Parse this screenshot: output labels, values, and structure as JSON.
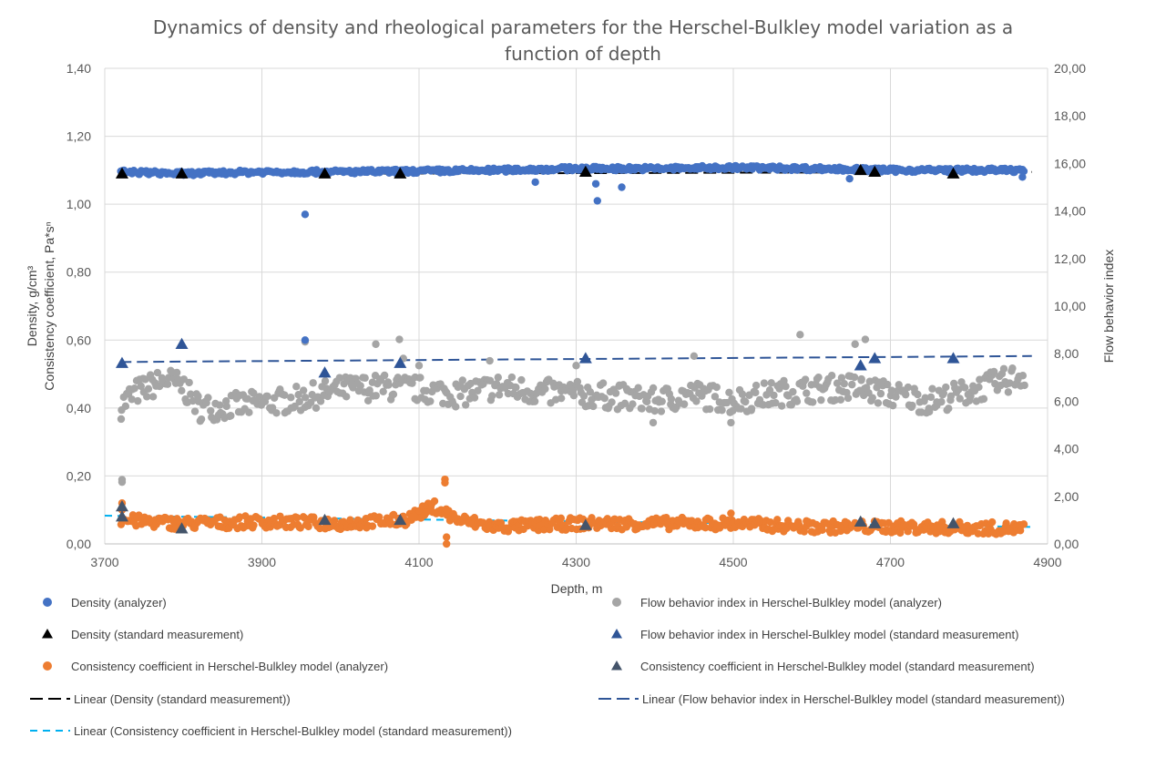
{
  "chart_data": {
    "type": "scatter",
    "title_line1": "Dynamics of density and rheological parameters for the Herschel-Bulkley model variation as a",
    "title_line2": "function of depth",
    "xlabel": "Depth, m",
    "ylabel_left_line1": "Density, g/cm³",
    "ylabel_left_line2": "Consistency coefficient, Pa*sⁿ",
    "ylabel_right": "Flow behavior index",
    "xlim": [
      3700,
      4900
    ],
    "ylim_left": [
      0,
      1.4
    ],
    "ylim_right": [
      0,
      20
    ],
    "x_ticks": [
      "3700",
      "3900",
      "4100",
      "4300",
      "4500",
      "4700",
      "4900"
    ],
    "y_left_ticks": [
      "0,00",
      "0,20",
      "0,40",
      "0,60",
      "0,80",
      "1,00",
      "1,20",
      "1,40"
    ],
    "y_right_ticks": [
      "0,00",
      "2,00",
      "4,00",
      "6,00",
      "8,00",
      "10,00",
      "12,00",
      "14,00",
      "16,00",
      "18,00",
      "20,00"
    ],
    "grid": true,
    "legend_position": "bottom",
    "colors": {
      "density_analyzer": "#4472C4",
      "density_standard": "#000000",
      "consistency_analyzer": "#ED7D31",
      "consistency_standard": "#44546A",
      "flow_analyzer": "#A5A5A5",
      "flow_standard": "#2F5597",
      "trend_density": "#000000",
      "trend_flow": "#2F5597",
      "trend_consistency": "#00B0F0"
    },
    "series": {
      "density_analyzer": {
        "name": "Density (analyzer)",
        "axis": "left",
        "baseline": [
          [
            3720,
            1.095
          ],
          [
            3800,
            1.09
          ],
          [
            3900,
            1.095
          ],
          [
            4000,
            1.095
          ],
          [
            4100,
            1.097
          ],
          [
            4200,
            1.1
          ],
          [
            4300,
            1.105
          ],
          [
            4400,
            1.105
          ],
          [
            4500,
            1.108
          ],
          [
            4600,
            1.105
          ],
          [
            4700,
            1.1
          ],
          [
            4870,
            1.1
          ]
        ],
        "outliers": [
          [
            3955,
            0.97
          ],
          [
            3955,
            0.6
          ],
          [
            4248,
            1.065
          ],
          [
            4325,
            1.06
          ],
          [
            4327,
            1.01
          ],
          [
            4358,
            1.05
          ],
          [
            4648,
            1.075
          ],
          [
            4868,
            1.08
          ]
        ]
      },
      "density_standard": {
        "name": "Density (standard measurement)",
        "axis": "left",
        "points": [
          [
            3722,
            1.09
          ],
          [
            3798,
            1.09
          ],
          [
            3980,
            1.09
          ],
          [
            4076,
            1.09
          ],
          [
            4312,
            1.095
          ],
          [
            4662,
            1.1
          ],
          [
            4680,
            1.095
          ],
          [
            4780,
            1.09
          ]
        ]
      },
      "consistency_analyzer": {
        "name": "Consistency coefficient in Herschel-Bulkley model (analyzer)",
        "axis": "left",
        "baseline": [
          [
            3720,
            0.07
          ],
          [
            3800,
            0.06
          ],
          [
            3900,
            0.065
          ],
          [
            4000,
            0.06
          ],
          [
            4080,
            0.07
          ],
          [
            4120,
            0.11
          ],
          [
            4150,
            0.07
          ],
          [
            4200,
            0.05
          ],
          [
            4300,
            0.06
          ],
          [
            4400,
            0.06
          ],
          [
            4500,
            0.06
          ],
          [
            4600,
            0.05
          ],
          [
            4700,
            0.05
          ],
          [
            4870,
            0.045
          ]
        ],
        "outliers": [
          [
            3722,
            0.12
          ],
          [
            3722,
            0.1
          ],
          [
            4133,
            0.19
          ],
          [
            4133,
            0.18
          ],
          [
            4135,
            0.0
          ],
          [
            4135,
            0.02
          ],
          [
            4497,
            0.09
          ],
          [
            4075,
            0.07
          ]
        ]
      },
      "consistency_standard": {
        "name": "Consistency coefficient in Herschel-Bulkley model (standard measurement)",
        "axis": "left",
        "points": [
          [
            3722,
            0.11
          ],
          [
            3722,
            0.08
          ],
          [
            3798,
            0.045
          ],
          [
            3980,
            0.07
          ],
          [
            4076,
            0.07
          ],
          [
            4312,
            0.055
          ],
          [
            4662,
            0.065
          ],
          [
            4680,
            0.06
          ],
          [
            4780,
            0.06
          ]
        ]
      },
      "flow_analyzer": {
        "name": "Flow behavior index in Herschel-Bulkley model (analyzer)",
        "axis": "right",
        "baseline": [
          [
            3720,
            5.8
          ],
          [
            3740,
            6.4
          ],
          [
            3780,
            6.9
          ],
          [
            3800,
            6.6
          ],
          [
            3820,
            5.7
          ],
          [
            3860,
            5.8
          ],
          [
            3900,
            5.9
          ],
          [
            3950,
            6.1
          ],
          [
            4000,
            6.5
          ],
          [
            4050,
            6.6
          ],
          [
            4100,
            6.5
          ],
          [
            4150,
            6.3
          ],
          [
            4200,
            6.6
          ],
          [
            4250,
            6.4
          ],
          [
            4300,
            6.3
          ],
          [
            4350,
            6.2
          ],
          [
            4400,
            6.0
          ],
          [
            4450,
            6.3
          ],
          [
            4500,
            6.0
          ],
          [
            4550,
            6.3
          ],
          [
            4600,
            6.5
          ],
          [
            4650,
            6.6
          ],
          [
            4700,
            6.3
          ],
          [
            4750,
            6.0
          ],
          [
            4800,
            6.4
          ],
          [
            4870,
            7.1
          ]
        ],
        "outliers": [
          [
            3722,
            2.7
          ],
          [
            3722,
            2.6
          ],
          [
            3955,
            8.5
          ],
          [
            4045,
            8.4
          ],
          [
            4075,
            8.6
          ],
          [
            4100,
            7.5
          ],
          [
            4300,
            7.5
          ],
          [
            4398,
            5.1
          ],
          [
            4497,
            5.1
          ],
          [
            4585,
            8.8
          ],
          [
            4655,
            8.4
          ],
          [
            4668,
            8.6
          ],
          [
            4450,
            7.9
          ],
          [
            4190,
            7.7
          ],
          [
            4080,
            7.8
          ]
        ]
      },
      "flow_standard": {
        "name": "Flow behavior index in Herschel-Bulkley model (standard measurement)",
        "axis": "right",
        "points": [
          [
            3722,
            7.6
          ],
          [
            3798,
            8.4
          ],
          [
            3980,
            7.2
          ],
          [
            4076,
            7.6
          ],
          [
            4312,
            7.8
          ],
          [
            4662,
            7.5
          ],
          [
            4680,
            7.8
          ],
          [
            4780,
            7.8
          ]
        ]
      },
      "trend_density": {
        "name": "Linear (Density (standard measurement))",
        "axis": "left",
        "line": [
          [
            3720,
            1.088
          ],
          [
            4880,
            1.095
          ]
        ]
      },
      "trend_flow": {
        "name": "Linear (Flow behavior index in Herschel-Bulkley model (standard measurement))",
        "axis": "right",
        "line": [
          [
            3720,
            7.65
          ],
          [
            4880,
            7.9
          ]
        ]
      },
      "trend_consistency": {
        "name": "Linear (Consistency coefficient in Herschel-Bulkley model (standard measurement))",
        "axis": "left",
        "line": [
          [
            3700,
            0.083
          ],
          [
            4880,
            0.05
          ]
        ]
      }
    }
  }
}
